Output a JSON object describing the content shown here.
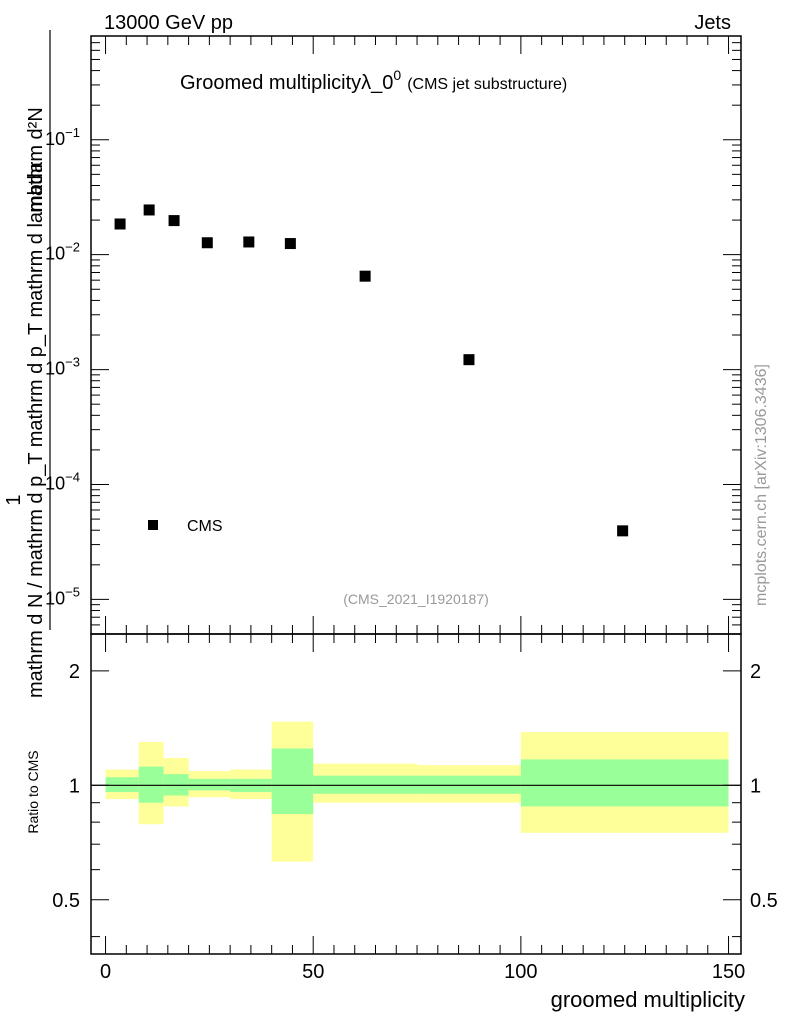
{
  "header": {
    "left": "13000 GeV pp",
    "right": "Jets"
  },
  "title": {
    "main": "Groomed multiplicityλ_0",
    "sup": "0",
    "sub": "(CMS jet substructure)"
  },
  "watermark": "mcplots.cern.ch [arXiv:1306.3436]",
  "analysis_id": "(CMS_2021_I1920187)",
  "legend": {
    "label": "CMS"
  },
  "axes": {
    "ylabel_top": "mathrm d²N",
    "ylabel_bottom": "mathrm d N / mathrm d p_T mathrm d p_T mathrm d lambda",
    "ylabel_prefix": "1",
    "ratio_ylabel": "Ratio to CMS",
    "xlabel": "groomed multiplicity"
  },
  "colors": {
    "data": "#000000",
    "band_inner": "#99ff99",
    "band_outer": "#ffff99",
    "frame": "#000000"
  },
  "chart_data": [
    {
      "type": "scatter",
      "scale": "log",
      "series": [
        {
          "name": "CMS",
          "x": [
            3.5,
            10.5,
            16.5,
            24.5,
            34.5,
            44.5,
            62.5,
            87.5,
            124.5
          ],
          "y": [
            0.0185,
            0.0245,
            0.0198,
            0.0127,
            0.0129,
            0.0125,
            0.0065,
            0.00122,
            3.95e-05
          ]
        }
      ],
      "xlim": [
        -3.5,
        153
      ],
      "ylim": [
        5e-06,
        0.8
      ],
      "yticks": [
        {
          "value": 1e-05,
          "mant": "10",
          "exp": "−5"
        },
        {
          "value": 0.0001,
          "mant": "10",
          "exp": "−4"
        },
        {
          "value": 0.001,
          "mant": "10",
          "exp": "−3"
        },
        {
          "value": 0.01,
          "mant": "10",
          "exp": "−2"
        },
        {
          "value": 0.1,
          "mant": "10",
          "exp": "−1"
        }
      ],
      "grid": false
    },
    {
      "type": "area",
      "ylabel": "Ratio to CMS",
      "xlabel": "groomed multiplicity",
      "xlim": [
        -3.5,
        153
      ],
      "ylim": [
        0.36,
        2.5
      ],
      "xticks": [
        0,
        50,
        100,
        150
      ],
      "yticks": [
        0.5,
        1,
        2
      ],
      "reference": 1,
      "bins": [
        {
          "lo": 0,
          "hi": 8,
          "inner": [
            0.96,
            1.05
          ],
          "outer": [
            0.92,
            1.1
          ]
        },
        {
          "lo": 8,
          "hi": 14,
          "inner": [
            0.9,
            1.12
          ],
          "outer": [
            0.79,
            1.3
          ]
        },
        {
          "lo": 14,
          "hi": 20,
          "inner": [
            0.94,
            1.07
          ],
          "outer": [
            0.88,
            1.18
          ]
        },
        {
          "lo": 20,
          "hi": 30,
          "inner": [
            0.97,
            1.04
          ],
          "outer": [
            0.93,
            1.09
          ]
        },
        {
          "lo": 30,
          "hi": 40,
          "inner": [
            0.96,
            1.04
          ],
          "outer": [
            0.92,
            1.1
          ]
        },
        {
          "lo": 40,
          "hi": 50,
          "inner": [
            0.84,
            1.25
          ],
          "outer": [
            0.63,
            1.47
          ]
        },
        {
          "lo": 50,
          "hi": 75,
          "inner": [
            0.95,
            1.06
          ],
          "outer": [
            0.9,
            1.14
          ]
        },
        {
          "lo": 75,
          "hi": 100,
          "inner": [
            0.95,
            1.06
          ],
          "outer": [
            0.9,
            1.13
          ]
        },
        {
          "lo": 100,
          "hi": 150,
          "inner": [
            0.88,
            1.17
          ],
          "outer": [
            0.75,
            1.38
          ]
        }
      ]
    }
  ]
}
